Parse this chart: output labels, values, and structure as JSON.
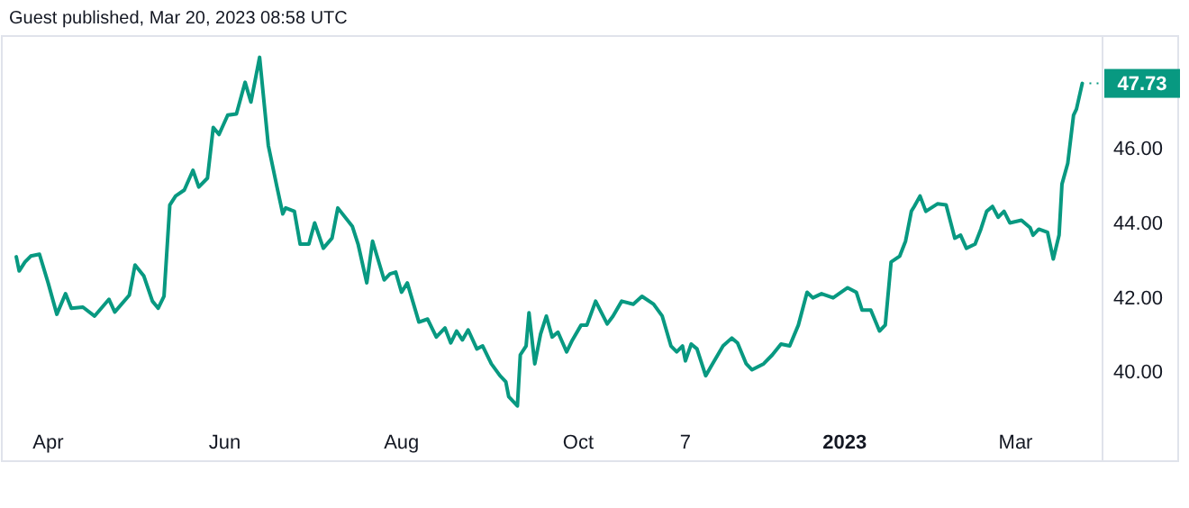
{
  "chart_data": {
    "type": "line",
    "title": "Guest published, Mar 20, 2023 08:58 UTC",
    "x": [
      "2022-03-21",
      "2022-03-22",
      "2022-03-24",
      "2022-03-26",
      "2022-03-29",
      "2022-04-01",
      "2022-04-04",
      "2022-04-07",
      "2022-04-09",
      "2022-04-13",
      "2022-04-17",
      "2022-04-22",
      "2022-04-24",
      "2022-04-29",
      "2022-05-01",
      "2022-05-04",
      "2022-05-07",
      "2022-05-09",
      "2022-05-11",
      "2022-05-13",
      "2022-05-15",
      "2022-05-18",
      "2022-05-21",
      "2022-05-23",
      "2022-05-26",
      "2022-05-28",
      "2022-05-30",
      "2022-06-02",
      "2022-06-05",
      "2022-06-08",
      "2022-06-10",
      "2022-06-13",
      "2022-06-16",
      "2022-06-19",
      "2022-06-21",
      "2022-06-22",
      "2022-06-25",
      "2022-06-27",
      "2022-06-30",
      "2022-07-02",
      "2022-07-05",
      "2022-07-08",
      "2022-07-10",
      "2022-07-15",
      "2022-07-17",
      "2022-07-20",
      "2022-07-22",
      "2022-07-26",
      "2022-07-28",
      "2022-07-30",
      "2022-08-01",
      "2022-08-03",
      "2022-08-07",
      "2022-08-10",
      "2022-08-13",
      "2022-08-16",
      "2022-08-18",
      "2022-08-20",
      "2022-08-22",
      "2022-08-24",
      "2022-08-27",
      "2022-08-29",
      "2022-09-01",
      "2022-09-04",
      "2022-09-06",
      "2022-09-07",
      "2022-09-10",
      "2022-09-11",
      "2022-09-13",
      "2022-09-14",
      "2022-09-16",
      "2022-09-18",
      "2022-09-20",
      "2022-09-22",
      "2022-09-24",
      "2022-09-27",
      "2022-09-29",
      "2022-10-02",
      "2022-10-04",
      "2022-10-07",
      "2022-10-11",
      "2022-10-13",
      "2022-10-16",
      "2022-10-20",
      "2022-10-23",
      "2022-10-27",
      "2022-10-30",
      "2022-11-02",
      "2022-11-04",
      "2022-11-06",
      "2022-11-07",
      "2022-11-09",
      "2022-11-11",
      "2022-11-14",
      "2022-11-16",
      "2022-11-20",
      "2022-11-23",
      "2022-11-25",
      "2022-11-28",
      "2022-11-30",
      "2022-12-04",
      "2022-12-07",
      "2022-12-10",
      "2022-12-13",
      "2022-12-16",
      "2022-12-19",
      "2022-12-21",
      "2022-12-24",
      "2022-12-28",
      "2023-01-02",
      "2023-01-05",
      "2023-01-07",
      "2023-01-10",
      "2023-01-13",
      "2023-01-15",
      "2023-01-17",
      "2023-01-20",
      "2023-01-22",
      "2023-01-24",
      "2023-01-25",
      "2023-01-27",
      "2023-01-29",
      "2023-02-02",
      "2023-02-05",
      "2023-02-08",
      "2023-02-10",
      "2023-02-12",
      "2023-02-15",
      "2023-02-17",
      "2023-02-19",
      "2023-02-21",
      "2023-02-23",
      "2023-02-25",
      "2023-02-27",
      "2023-03-03",
      "2023-03-06",
      "2023-03-07",
      "2023-03-09",
      "2023-03-12",
      "2023-03-14",
      "2023-03-16",
      "2023-03-17",
      "2023-03-19",
      "2023-03-21",
      "2023-03-22",
      "2023-03-24"
    ],
    "series": [
      {
        "color": "#089981",
        "values": [
          43.08,
          42.7,
          42.94,
          43.1,
          43.15,
          42.38,
          41.54,
          42.09,
          41.7,
          41.73,
          41.49,
          41.94,
          41.6,
          42.05,
          42.86,
          42.57,
          41.89,
          41.7,
          42.02,
          44.47,
          44.71,
          44.87,
          45.4,
          44.95,
          45.19,
          46.55,
          46.36,
          46.88,
          46.91,
          47.76,
          47.23,
          48.43,
          46.07,
          44.95,
          44.23,
          44.39,
          44.3,
          43.42,
          43.42,
          43.99,
          43.31,
          43.58,
          44.39,
          43.9,
          43.42,
          42.38,
          43.5,
          42.46,
          42.62,
          42.67,
          42.13,
          42.38,
          41.33,
          41.41,
          40.93,
          41.17,
          40.77,
          41.09,
          40.85,
          41.12,
          40.61,
          40.69,
          40.21,
          39.89,
          39.73,
          39.33,
          39.08,
          40.45,
          40.69,
          41.58,
          40.21,
          41.01,
          41.49,
          40.93,
          41.06,
          40.53,
          40.85,
          41.25,
          41.25,
          41.89,
          41.28,
          41.49,
          41.89,
          41.81,
          42.02,
          41.81,
          41.49,
          40.69,
          40.53,
          40.69,
          40.29,
          40.74,
          40.61,
          39.89,
          40.16,
          40.69,
          40.9,
          40.77,
          40.21,
          40.05,
          40.21,
          40.45,
          40.74,
          40.69,
          41.25,
          42.13,
          41.98,
          42.09,
          41.98,
          42.25,
          42.13,
          41.65,
          41.65,
          41.09,
          41.25,
          42.94,
          43.1,
          43.5,
          44.3,
          44.43,
          44.71,
          44.3,
          44.5,
          44.47,
          43.58,
          43.66,
          43.31,
          43.42,
          43.82,
          44.3,
          44.43,
          44.14,
          44.3,
          43.99,
          44.06,
          43.86,
          43.66,
          43.82,
          43.74,
          43.02,
          43.66,
          45.03,
          45.59,
          46.88,
          47.04,
          47.73
        ]
      }
    ],
    "xlim": [
      "2022-03-16",
      "2023-03-31"
    ],
    "xticks": [
      {
        "value": "2022-04-01",
        "label": "Apr"
      },
      {
        "value": "2022-06-01",
        "label": "Jun"
      },
      {
        "value": "2022-08-01",
        "label": "Aug"
      },
      {
        "value": "2022-10-01",
        "label": "Oct"
      },
      {
        "value": "2022-11-07",
        "label": "7"
      },
      {
        "value": "2023-01-01",
        "label": "2023"
      },
      {
        "value": "2023-03-01",
        "label": "Mar"
      }
    ],
    "ylim": [
      37.6,
      49.0
    ],
    "yticks": [
      {
        "value": 40,
        "label": "40.00"
      },
      {
        "value": 42,
        "label": "42.00"
      },
      {
        "value": 44,
        "label": "44.00"
      },
      {
        "value": 46,
        "label": "46.00"
      }
    ],
    "annotations": [
      {
        "text": "47.73",
        "x": "2023-03-24",
        "y": 47.73
      }
    ],
    "grid": false,
    "line_style": "solid",
    "marker": "none"
  }
}
